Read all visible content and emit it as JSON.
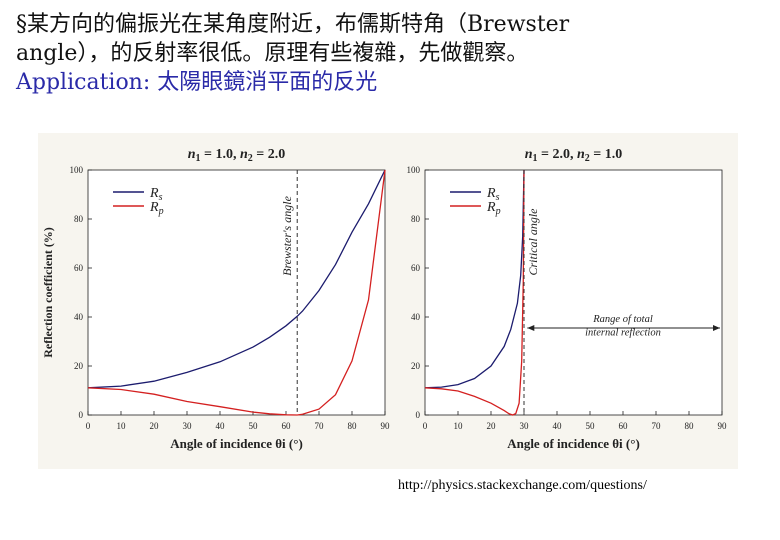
{
  "slide": {
    "line1": "§某方向的偏振光在某角度附近，布儒斯特角（Brewster",
    "line2": "angle），的反射率很低。原理有些複雜，先做觀察。",
    "app_prefix": "Application:",
    "app_text": "太陽眼鏡消平面的反光",
    "source": "http://physics.stackexchange.com/questions/"
  },
  "colors": {
    "rs": "#1c1c6e",
    "rp": "#d42020",
    "background": "#f7f5ef"
  },
  "chart_data": [
    {
      "type": "line",
      "title_parts": [
        "n",
        "1",
        " = 1.0,  ",
        "n",
        "2",
        " = 2.0"
      ],
      "xlabel": "Angle of incidence θi (°)",
      "ylabel": "Reflection coefficient (%)",
      "xlim": [
        0,
        90
      ],
      "ylim": [
        0,
        100
      ],
      "xticks": [
        0,
        10,
        20,
        30,
        40,
        50,
        60,
        70,
        80,
        90
      ],
      "yticks": [
        0,
        20,
        40,
        60,
        80,
        100
      ],
      "legend_position": "top-left",
      "series": [
        {
          "name": "Rs",
          "key": "rs",
          "x": [
            0,
            10,
            20,
            30,
            40,
            50,
            55,
            60,
            63.4,
            65,
            70,
            75,
            80,
            85,
            90
          ],
          "y": [
            11.1,
            11.8,
            13.8,
            17.4,
            21.7,
            27.7,
            31.7,
            36.4,
            40.3,
            42.4,
            50.8,
            61.4,
            74.6,
            86.2,
            100
          ]
        },
        {
          "name": "Rp",
          "key": "rp",
          "x": [
            0,
            10,
            20,
            30,
            40,
            50,
            55,
            60,
            63.4,
            65,
            70,
            75,
            80,
            85,
            90
          ],
          "y": [
            11.1,
            10.4,
            8.5,
            5.5,
            3.4,
            1.2,
            0.5,
            0.1,
            0.0,
            0.3,
            2.4,
            8.3,
            22.1,
            47.0,
            100
          ]
        }
      ],
      "annotations": [
        {
          "text": "Brewster's angle",
          "x": 63.4
        }
      ]
    },
    {
      "type": "line",
      "title_parts": [
        "n",
        "1",
        " = 2.0,  ",
        "n",
        "2",
        " = 1.0"
      ],
      "xlabel": "Angle of incidence θi (°)",
      "ylabel": "",
      "xlim": [
        0,
        90
      ],
      "ylim": [
        0,
        100
      ],
      "xticks": [
        0,
        10,
        20,
        30,
        40,
        50,
        60,
        70,
        80,
        90
      ],
      "yticks": [
        0,
        20,
        40,
        60,
        80,
        100
      ],
      "legend_position": "top-left",
      "series": [
        {
          "name": "Rs",
          "key": "rs",
          "x": [
            0,
            5,
            10,
            15,
            20,
            24,
            26,
            28,
            29,
            29.6,
            30
          ],
          "y": [
            11.1,
            11.4,
            12.4,
            14.9,
            20.0,
            28.0,
            35.0,
            45.6,
            57.0,
            73.0,
            100
          ]
        },
        {
          "name": "Rp",
          "key": "rp",
          "x": [
            0,
            5,
            10,
            15,
            20,
            24,
            25.5,
            26.6,
            27.5,
            28.5,
            29.3,
            29.8,
            30
          ],
          "y": [
            11.1,
            10.7,
            9.8,
            7.6,
            4.8,
            1.8,
            0.5,
            0.0,
            0.6,
            4.8,
            22.0,
            55.0,
            100
          ]
        }
      ],
      "annotations": [
        {
          "text": "Critical angle",
          "x": 30
        },
        {
          "text": "Range of total",
          "x": 60
        },
        {
          "text": "internal reflection",
          "x": 60
        }
      ]
    }
  ]
}
